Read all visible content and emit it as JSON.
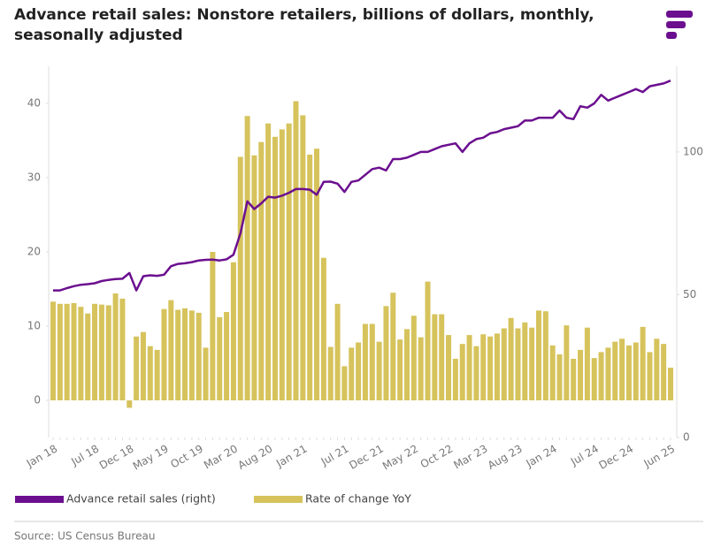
{
  "chart_data": {
    "type": "bar",
    "title": "Advance retail sales: Nonstore retailers, billions of dollars, monthly, seasonally adjusted",
    "source": "Source: US Census Bureau",
    "categories": [
      "Jan 18",
      null,
      null,
      null,
      null,
      null,
      "Jul 18",
      null,
      null,
      null,
      null,
      "Dec 18",
      null,
      null,
      null,
      null,
      "May 19",
      null,
      null,
      null,
      null,
      "Oct 19",
      null,
      null,
      null,
      null,
      "Mar 20",
      null,
      null,
      null,
      null,
      "Aug 20",
      null,
      null,
      null,
      null,
      "Jan 21",
      null,
      null,
      null,
      null,
      null,
      "Jul 21",
      null,
      null,
      null,
      null,
      "Dec 21",
      null,
      null,
      null,
      null,
      "May 22",
      null,
      null,
      null,
      null,
      "Oct 22",
      null,
      null,
      null,
      null,
      "Mar 23",
      null,
      null,
      null,
      null,
      "Aug 23",
      null,
      null,
      null,
      null,
      "Jan 24",
      null,
      null,
      null,
      null,
      null,
      "Jul 24",
      null,
      null,
      null,
      null,
      "Dec 24",
      null,
      null,
      null,
      null,
      null,
      "Jun 25"
    ],
    "series": [
      {
        "name": "Advance retail sales (right)",
        "type": "line",
        "axis": "y2",
        "color": "#6b0f8f",
        "values": [
          51.5,
          51.5,
          52.3,
          53,
          53.5,
          53.7,
          54,
          54.8,
          55.2,
          55.5,
          55.6,
          57.6,
          51.5,
          56.5,
          56.8,
          56.6,
          57,
          60,
          60.8,
          61,
          61.4,
          62,
          62.2,
          62.3,
          62,
          62.4,
          64,
          71.5,
          82.7,
          80,
          82,
          84.3,
          84,
          84.7,
          85.7,
          87,
          87,
          86.8,
          85,
          89.5,
          89.6,
          88.9,
          86,
          89.5,
          90,
          92,
          94,
          94.5,
          93.5,
          97.5,
          97.5,
          98,
          99,
          100,
          100,
          101,
          102,
          102.5,
          103,
          100,
          103,
          104.5,
          105,
          106.5,
          107,
          108,
          108.5,
          109,
          111,
          111,
          112,
          112,
          112,
          114.5,
          112,
          111.5,
          116,
          115.5,
          117,
          120,
          118,
          119,
          120,
          121,
          122,
          121,
          123,
          123.5,
          124,
          125
        ]
      },
      {
        "name": "Rate of change YoY",
        "type": "bar",
        "color": "#d6c35c",
        "values": [
          13.3,
          13,
          13,
          13.1,
          12.6,
          11.7,
          13,
          12.9,
          12.8,
          14.4,
          13.7,
          -1,
          8.6,
          9.2,
          7.3,
          6.8,
          12.3,
          13.5,
          12.2,
          12.4,
          12.1,
          11.8,
          7.1,
          20,
          11.2,
          11.9,
          18.6,
          32.8,
          38.3,
          33,
          34.8,
          37.3,
          35.5,
          36.5,
          37.3,
          40.3,
          38.4,
          33.1,
          33.9,
          19.2,
          7.2,
          13,
          4.6,
          7.1,
          7.8,
          10.3,
          10.3,
          7.9,
          12.7,
          14.5,
          8.2,
          9.6,
          11.4,
          8.5,
          16,
          11.6,
          11.6,
          8.8,
          5.6,
          7.6,
          8.8,
          7.3,
          8.9,
          8.6,
          9,
          9.7,
          11.1,
          9.7,
          10.5,
          9.8,
          12.1,
          12,
          7.4,
          6.2,
          10.1,
          5.6,
          6.8,
          9.8,
          5.7,
          6.5,
          7.1,
          7.9,
          8.3,
          7.4,
          7.8,
          9.9,
          6.5,
          8.3,
          7.6,
          4.4
        ]
      }
    ],
    "ylim": [
      -5,
      45
    ],
    "yticks": [
      0,
      10,
      20,
      30,
      40
    ],
    "y2lim": [
      0,
      130
    ],
    "y2ticks": [
      0,
      50,
      100
    ]
  }
}
